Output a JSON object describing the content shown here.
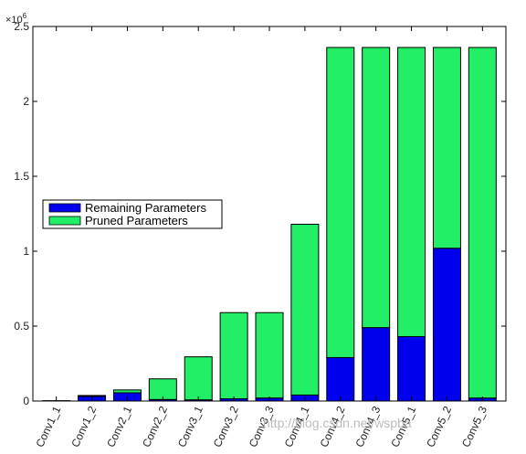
{
  "chart_data": {
    "type": "bar",
    "stacked": true,
    "categories": [
      "Conv1_1",
      "Conv1_2",
      "Conv2_1",
      "Conv2_2",
      "Conv3_1",
      "Conv3_2",
      "Conv3_3",
      "Conv4_1",
      "Conv4_2",
      "Conv4_3",
      "Conv5_1",
      "Conv5_2",
      "Conv5_3"
    ],
    "series": [
      {
        "name": "Remaining Parameters",
        "color": "#0000ee",
        "values": [
          1000,
          31000,
          55000,
          10000,
          8000,
          15000,
          20000,
          40000,
          290000,
          490000,
          430000,
          1020000,
          20000
        ]
      },
      {
        "name": "Pruned Parameters",
        "color": "#22ee66",
        "values": [
          1000,
          6000,
          19000,
          138000,
          287000,
          575000,
          570000,
          1140000,
          2070000,
          1870000,
          1930000,
          1340000,
          2340000
        ]
      }
    ],
    "yticks": [
      "0",
      "0.5",
      "1",
      "1.5",
      "2",
      "2.5"
    ],
    "ytick_values": [
      0,
      500000,
      1000000,
      1500000,
      2000000,
      2500000
    ],
    "y_exponent_label": "×10",
    "y_exponent_power": "6",
    "ylim": [
      0,
      2500000
    ],
    "title": "",
    "xlabel": "",
    "ylabel": "",
    "grid": false,
    "legend_placement": "center-left"
  },
  "watermark": "http://blog.csdn.net/wspba"
}
